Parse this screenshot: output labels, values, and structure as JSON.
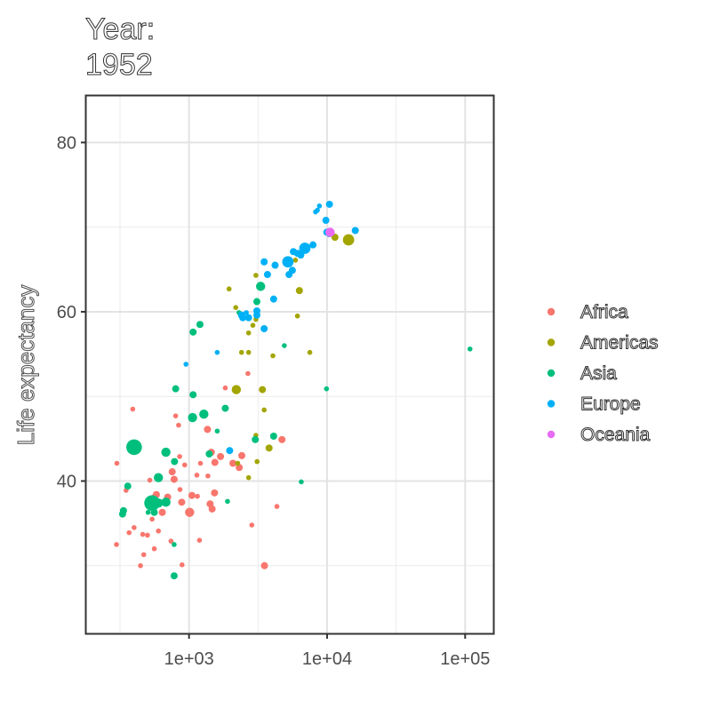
{
  "chart_data": {
    "type": "scatter",
    "title_lines": [
      "Year:",
      "1952"
    ],
    "xlabel": "",
    "ylabel": "Life expectancy",
    "x_scale": "log10",
    "xlim": [
      180,
      160000
    ],
    "ylim": [
      22,
      85.5
    ],
    "x_ticks": [
      1000,
      10000,
      100000
    ],
    "x_tick_labels": [
      "1e+03",
      "1e+04",
      "1e+05"
    ],
    "x_minor_ticks": [
      316.2,
      3162.3,
      31622.8
    ],
    "y_ticks": [
      40,
      60,
      80
    ],
    "y_tick_labels": [
      "40",
      "60",
      "80"
    ],
    "y_minor_ticks": [
      30,
      50,
      70
    ],
    "grid": true,
    "legend_position": "right",
    "legend": [
      {
        "name": "Africa",
        "color": "#F8766D"
      },
      {
        "name": "Americas",
        "color": "#A3A500"
      },
      {
        "name": "Asia",
        "color": "#00BF7D"
      },
      {
        "name": "Europe",
        "color": "#00B0F6"
      },
      {
        "name": "Oceania",
        "color": "#E76BF3"
      }
    ],
    "series": [
      {
        "name": "Africa",
        "color": "#F8766D",
        "points": [
          [
            391,
            48.5,
            1
          ],
          [
            800,
            47.7,
            1
          ],
          [
            840,
            46.6,
            1
          ],
          [
            1360,
            46.1,
            1.5
          ],
          [
            1140,
            40.7,
            1
          ],
          [
            1210,
            42.1,
            1
          ],
          [
            1370,
            40.6,
            1
          ],
          [
            1450,
            43.4,
            1.5
          ],
          [
            1540,
            42.2,
            1.5
          ],
          [
            1690,
            42.9,
            1.5
          ],
          [
            1830,
            51,
            1
          ],
          [
            2080,
            42.1,
            1.5
          ],
          [
            2310,
            41.6,
            1.5
          ],
          [
            2410,
            43,
            1.5
          ],
          [
            2670,
            52.7,
            1
          ],
          [
            2850,
            34.8,
            1
          ],
          [
            4710,
            44.9,
            1.5
          ],
          [
            4330,
            37,
            1
          ],
          [
            3520,
            30,
            1.5
          ],
          [
            1530,
            38.6,
            1.5
          ],
          [
            1420,
            37.3,
            1.5
          ],
          [
            1150,
            38.2,
            1
          ],
          [
            1050,
            38.3,
            1.5
          ],
          [
            1010,
            36.3,
            2
          ],
          [
            860,
            39,
            1
          ],
          [
            930,
            41.9,
            1
          ],
          [
            755,
            41.1,
            1.5
          ],
          [
            780,
            40.2,
            1.5
          ],
          [
            855,
            42.9,
            1
          ],
          [
            700,
            38.1,
            1.5
          ],
          [
            640,
            36.3,
            1.5
          ],
          [
            580,
            38.4,
            1.5
          ],
          [
            555,
            38,
            1.5
          ],
          [
            520,
            40.1,
            1
          ],
          [
            540,
            35.5,
            1
          ],
          [
            600,
            34.1,
            1
          ],
          [
            500,
            33.6,
            1
          ],
          [
            470,
            31.3,
            1
          ],
          [
            462,
            33.7,
            1
          ],
          [
            445,
            30,
            1
          ],
          [
            400,
            34.5,
            1
          ],
          [
            368,
            33.9,
            1
          ],
          [
            350,
            38.9,
            1
          ],
          [
            330,
            36.2,
            1
          ],
          [
            300,
            42.1,
            1
          ],
          [
            298,
            32.5,
            1
          ],
          [
            560,
            32,
            1
          ],
          [
            740,
            32.9,
            1
          ],
          [
            890,
            30.1,
            1
          ],
          [
            1190,
            33,
            1
          ],
          [
            1470,
            36.7,
            1.5
          ],
          [
            885,
            37.5,
            1.5
          ]
        ]
      },
      {
        "name": "Americas",
        "color": "#A3A500",
        "points": [
          [
            14300,
            68.5,
            2.5
          ],
          [
            11400,
            68.8,
            1.5
          ],
          [
            7500,
            55.2,
            1
          ],
          [
            6300,
            62.5,
            1.5
          ],
          [
            6100,
            59.5,
            1
          ],
          [
            5900,
            66.1,
            1
          ],
          [
            4250,
            65.4,
            1
          ],
          [
            4050,
            54.8,
            1
          ],
          [
            3800,
            43.9,
            1.5
          ],
          [
            3400,
            50.8,
            1.5
          ],
          [
            3500,
            48.4,
            1
          ],
          [
            3110,
            42.3,
            1
          ],
          [
            3050,
            45.4,
            1
          ],
          [
            3050,
            59.1,
            1
          ],
          [
            3050,
            64.3,
            1
          ],
          [
            2900,
            58.4,
            1
          ],
          [
            2700,
            55.2,
            1
          ],
          [
            2700,
            57.5,
            1
          ],
          [
            2400,
            55.2,
            1
          ],
          [
            2200,
            50.8,
            2
          ],
          [
            2250,
            42.1,
            1
          ],
          [
            2700,
            40.4,
            1
          ],
          [
            1950,
            62.7,
            1
          ],
          [
            3080,
            61.3,
            1
          ],
          [
            2180,
            60.5,
            1
          ]
        ]
      },
      {
        "name": "Asia",
        "color": "#00BF7D",
        "points": [
          [
            108400,
            55.6,
            1
          ],
          [
            9900,
            50.9,
            1
          ],
          [
            6500,
            39.9,
            1
          ],
          [
            4900,
            56,
            1
          ],
          [
            4100,
            45.3,
            1.5
          ],
          [
            3300,
            63,
            2
          ],
          [
            3100,
            61.2,
            1.5
          ],
          [
            3020,
            44.9,
            1.5
          ],
          [
            2300,
            59.9,
            1
          ],
          [
            1830,
            48.6,
            1.5
          ],
          [
            1600,
            45.9,
            1
          ],
          [
            1900,
            37.6,
            1
          ],
          [
            1400,
            43.2,
            1.5
          ],
          [
            1280,
            47.9,
            2
          ],
          [
            1200,
            58.5,
            1.5
          ],
          [
            1070,
            57.6,
            1.5
          ],
          [
            1060,
            47.5,
            2
          ],
          [
            1070,
            50.2,
            1.5
          ],
          [
            800,
            50.9,
            1.5
          ],
          [
            785,
            42.3,
            1.5
          ],
          [
            780,
            32.5,
            1
          ],
          [
            780,
            28.8,
            1.5
          ],
          [
            680,
            43.4,
            2
          ],
          [
            680,
            37.5,
            2
          ],
          [
            600,
            37.4,
            2
          ],
          [
            600,
            40.4,
            2
          ],
          [
            400,
            44,
            3.5
          ],
          [
            540,
            37.4,
            3.5
          ],
          [
            560,
            36.3,
            1.5
          ],
          [
            505,
            36.3,
            1
          ],
          [
            360,
            39.4,
            1.5
          ],
          [
            330,
            36.1,
            1.5
          ],
          [
            335,
            36.5,
            1.5
          ]
        ]
      },
      {
        "name": "Europe",
        "color": "#00B0F6",
        "points": [
          [
            10400,
            72.7,
            1.5
          ],
          [
            8800,
            72.5,
            1
          ],
          [
            9800,
            70.8,
            1.5
          ],
          [
            8500,
            72,
            1
          ],
          [
            8250,
            71.8,
            1
          ],
          [
            7900,
            67.9,
            1.5
          ],
          [
            6900,
            67.5,
            2.5
          ],
          [
            6450,
            66.7,
            1.5
          ],
          [
            6100,
            66.9,
            1.5
          ],
          [
            5700,
            67.1,
            1.5
          ],
          [
            5600,
            64.9,
            1.5
          ],
          [
            5200,
            65.9,
            2.5
          ],
          [
            5300,
            64.4,
            1.5
          ],
          [
            4200,
            65.5,
            1.5
          ],
          [
            3500,
            65.9,
            1.5
          ],
          [
            4100,
            61.5,
            1.5
          ],
          [
            3700,
            64.4,
            1.5
          ],
          [
            3100,
            59.6,
            1.5
          ],
          [
            3100,
            60.1,
            1.5
          ],
          [
            3500,
            58,
            1.5
          ],
          [
            2700,
            59.3,
            1.5
          ],
          [
            2600,
            59.9,
            1
          ],
          [
            2450,
            59.3,
            1.5
          ],
          [
            2400,
            59.6,
            1.5
          ],
          [
            1600,
            55.2,
            1
          ],
          [
            950,
            53.8,
            1
          ],
          [
            1970,
            43.6,
            1.5
          ],
          [
            10350,
            69.1,
            1
          ],
          [
            16000,
            69.6,
            1.5
          ],
          [
            9950,
            69.4,
            1.5
          ]
        ]
      },
      {
        "name": "Oceania",
        "color": "#E76BF3",
        "points": [
          [
            10500,
            69.4,
            2
          ],
          [
            10900,
            69.3,
            1
          ]
        ]
      }
    ]
  }
}
